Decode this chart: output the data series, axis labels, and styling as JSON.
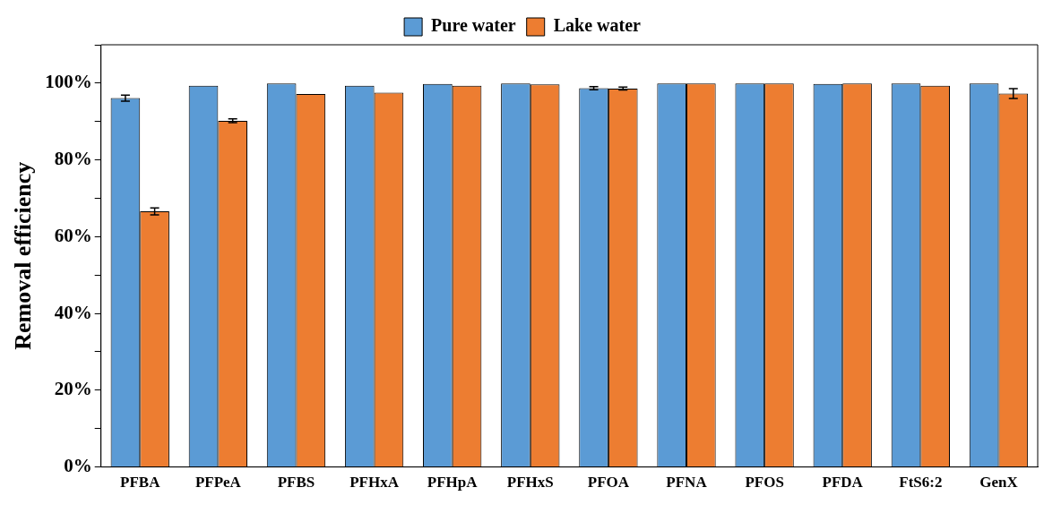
{
  "chart_data": {
    "type": "bar",
    "ylabel": "Removal efficiency",
    "categories": [
      "PFBA",
      "PFPeA",
      "PFBS",
      "PFHxA",
      "PFHpA",
      "PFHxS",
      "PFOA",
      "PFNA",
      "PFOS",
      "PFDA",
      "FtS6:2",
      "GenX"
    ],
    "series": [
      {
        "name": "Pure water",
        "color": "#5b9bd5",
        "values": [
          96.1,
          99.3,
          99.9,
          99.3,
          99.8,
          99.9,
          98.7,
          99.9,
          99.9,
          99.8,
          99.9,
          99.9
        ],
        "errors": [
          0.8,
          null,
          null,
          null,
          null,
          null,
          0.4,
          null,
          null,
          null,
          null,
          null
        ]
      },
      {
        "name": "Lake water",
        "color": "#ed7d31",
        "values": [
          66.6,
          90.2,
          97.2,
          97.5,
          99.3,
          99.7,
          98.6,
          99.9,
          99.9,
          99.9,
          99.3,
          97.3
        ],
        "errors": [
          0.9,
          0.5,
          null,
          null,
          null,
          null,
          0.4,
          null,
          null,
          null,
          null,
          1.3
        ]
      }
    ],
    "ylim": [
      0,
      110
    ],
    "yticks": [
      {
        "value": 0,
        "label": "0%"
      },
      {
        "value": 10,
        "label": null
      },
      {
        "value": 20,
        "label": "20%"
      },
      {
        "value": 30,
        "label": null
      },
      {
        "value": 40,
        "label": "40%"
      },
      {
        "value": 50,
        "label": null
      },
      {
        "value": 60,
        "label": "60%"
      },
      {
        "value": 70,
        "label": null
      },
      {
        "value": 80,
        "label": "80%"
      },
      {
        "value": 90,
        "label": null
      },
      {
        "value": 100,
        "label": "100%"
      },
      {
        "value": 110,
        "label": null
      }
    ],
    "grid": false,
    "legend": "top"
  }
}
